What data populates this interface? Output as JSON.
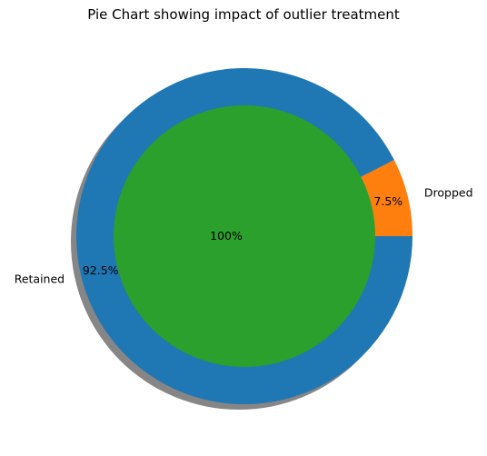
{
  "chart_data": {
    "type": "pie",
    "title": "Pie Chart showing impact of outlier treatment",
    "outer_ring": {
      "slices": [
        {
          "name": "Dropped",
          "value": 7.5,
          "pct_label": "7.5%",
          "color": "#ff7f0e"
        },
        {
          "name": "Retained",
          "value": 92.5,
          "pct_label": "92.5%",
          "color": "#1f77b4"
        }
      ]
    },
    "inner_pie": {
      "slices": [
        {
          "name": "",
          "value": 100,
          "pct_label": "100%",
          "color": "#2ca02c"
        }
      ]
    },
    "shadow": true,
    "start_angle_deg": 0,
    "direction": "counterclockwise"
  }
}
